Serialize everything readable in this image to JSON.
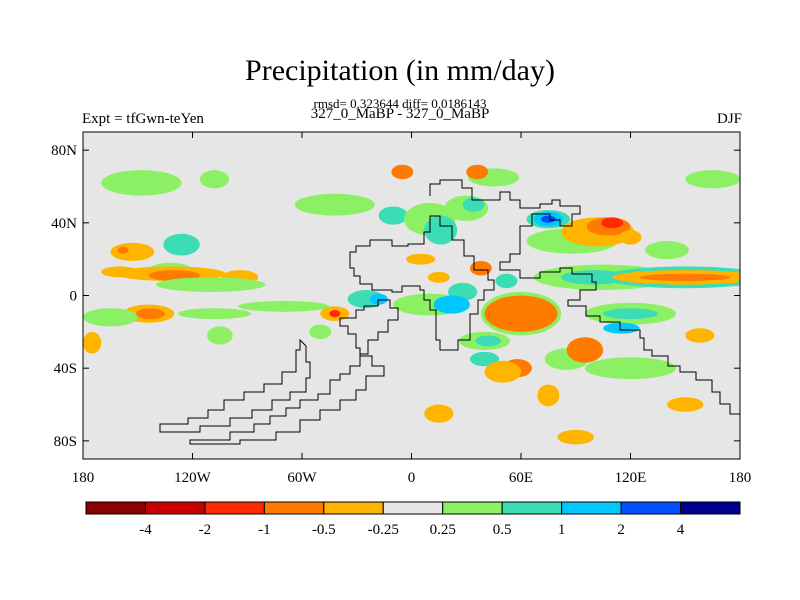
{
  "chart_data": {
    "type": "heatmap",
    "title": "Precipitation (in mm/day)",
    "stats_text": "rmsd= 0.323644 diff= 0.0186143",
    "case_text": "327_0_MaBP - 327_0_MaBP",
    "left_text": "Expt = tfGwn-teYen",
    "right_text": "DJF",
    "lon_range": [
      -180,
      180
    ],
    "lat_range": [
      -90,
      90
    ],
    "x_ticks": [
      {
        "value": -180,
        "label": "180"
      },
      {
        "value": -120,
        "label": "120W"
      },
      {
        "value": -60,
        "label": "60W"
      },
      {
        "value": 0,
        "label": "0"
      },
      {
        "value": 60,
        "label": "60E"
      },
      {
        "value": 120,
        "label": "120E"
      },
      {
        "value": 180,
        "label": "180"
      }
    ],
    "y_ticks": [
      {
        "value": 80,
        "label": "80N"
      },
      {
        "value": 40,
        "label": "40N"
      },
      {
        "value": 0,
        "label": "0"
      },
      {
        "value": -40,
        "label": "40S"
      },
      {
        "value": -80,
        "label": "80S"
      }
    ],
    "colorbar": {
      "colors": [
        "#8b0000",
        "#c80000",
        "#ff2a00",
        "#ff7b00",
        "#ffb400",
        "#e6e6e6",
        "#8cf064",
        "#3cdcb4",
        "#00c8ff",
        "#0050ff",
        "#00008c"
      ],
      "labels": [
        "-4",
        "-2",
        "-1",
        "-0.5",
        "-0.25",
        "0.25",
        "0.5",
        "1",
        "2",
        "4"
      ]
    },
    "background_color": "#e6e6e6",
    "anomalies": [
      {
        "lon": -153,
        "lat": 24,
        "rlon": 12,
        "rlat": 5,
        "level": 4
      },
      {
        "lon": -126,
        "lat": 28,
        "rlon": 10,
        "rlat": 6,
        "level": 7
      },
      {
        "lon": -132,
        "lat": 14,
        "rlon": 12,
        "rlat": 4,
        "level": 6
      },
      {
        "lon": -132,
        "lat": 12,
        "rlon": 30,
        "rlat": 4,
        "level": 4
      },
      {
        "lon": -130,
        "lat": 11,
        "rlon": 14,
        "rlat": 3,
        "level": 3
      },
      {
        "lon": -160,
        "lat": 13,
        "rlon": 10,
        "rlat": 3,
        "level": 4
      },
      {
        "lon": -148,
        "lat": 62,
        "rlon": 22,
        "rlat": 7,
        "level": 6
      },
      {
        "lon": -108,
        "lat": 64,
        "rlon": 8,
        "rlat": 5,
        "level": 6
      },
      {
        "lon": -94,
        "lat": 10,
        "rlon": 10,
        "rlat": 4,
        "level": 4
      },
      {
        "lon": -110,
        "lat": 6,
        "rlon": 30,
        "rlat": 4,
        "level": 6
      },
      {
        "lon": -175,
        "lat": -26,
        "rlon": 5,
        "rlat": 6,
        "level": 4
      },
      {
        "lon": -144,
        "lat": -10,
        "rlon": 14,
        "rlat": 5,
        "level": 4
      },
      {
        "lon": -143,
        "lat": -10,
        "rlon": 8,
        "rlat": 3,
        "level": 3
      },
      {
        "lon": -165,
        "lat": -12,
        "rlon": 15,
        "rlat": 5,
        "level": 6
      },
      {
        "lon": -108,
        "lat": -10,
        "rlon": 20,
        "rlat": 3,
        "level": 6
      },
      {
        "lon": -70,
        "lat": -6,
        "rlon": 25,
        "rlat": 3,
        "level": 6
      },
      {
        "lon": -42,
        "lat": -10,
        "rlon": 8,
        "rlat": 4,
        "level": 4
      },
      {
        "lon": -42,
        "lat": -10,
        "rlon": 3,
        "rlat": 2,
        "level": 2
      },
      {
        "lon": -105,
        "lat": -22,
        "rlon": 7,
        "rlat": 5,
        "level": 6
      },
      {
        "lon": -42,
        "lat": 50,
        "rlon": 22,
        "rlat": 6,
        "level": 6
      },
      {
        "lon": -10,
        "lat": 44,
        "rlon": 8,
        "rlat": 5,
        "level": 7
      },
      {
        "lon": -5,
        "lat": 68,
        "rlon": 6,
        "rlat": 4,
        "level": 3
      },
      {
        "lon": 10,
        "lat": 42,
        "rlon": 14,
        "rlat": 9,
        "level": 6
      },
      {
        "lon": 16,
        "lat": 36,
        "rlon": 9,
        "rlat": 8,
        "level": 7
      },
      {
        "lon": 30,
        "lat": 48,
        "rlon": 12,
        "rlat": 7,
        "level": 6
      },
      {
        "lon": 34,
        "lat": 50,
        "rlon": 6,
        "rlat": 4,
        "level": 7
      },
      {
        "lon": 45,
        "lat": 65,
        "rlon": 14,
        "rlat": 5,
        "level": 6
      },
      {
        "lon": 36,
        "lat": 68,
        "rlon": 6,
        "rlat": 4,
        "level": 3
      },
      {
        "lon": 5,
        "lat": 20,
        "rlon": 8,
        "rlat": 3,
        "level": 4
      },
      {
        "lon": 15,
        "lat": 10,
        "rlon": 6,
        "rlat": 3,
        "level": 4
      },
      {
        "lon": 10,
        "lat": -5,
        "rlon": 20,
        "rlat": 6,
        "level": 6
      },
      {
        "lon": -25,
        "lat": -2,
        "rlon": 10,
        "rlat": 5,
        "level": 7
      },
      {
        "lon": -18,
        "lat": -2,
        "rlon": 5,
        "rlat": 3,
        "level": 8
      },
      {
        "lon": 28,
        "lat": 2,
        "rlon": 8,
        "rlat": 5,
        "level": 7
      },
      {
        "lon": -50,
        "lat": -20,
        "rlon": 6,
        "rlat": 4,
        "level": 6
      },
      {
        "lon": 38,
        "lat": 15,
        "rlon": 6,
        "rlat": 4,
        "level": 3
      },
      {
        "lon": 52,
        "lat": 8,
        "rlon": 6,
        "rlat": 4,
        "level": 7
      },
      {
        "lon": 60,
        "lat": -10,
        "rlon": 22,
        "rlat": 12,
        "level": 6
      },
      {
        "lon": 60,
        "lat": -10,
        "rlon": 20,
        "rlat": 10,
        "level": 3
      },
      {
        "lon": 40,
        "lat": -25,
        "rlon": 14,
        "rlat": 5,
        "level": 6
      },
      {
        "lon": 42,
        "lat": -25,
        "rlon": 7,
        "rlat": 3,
        "level": 7
      },
      {
        "lon": 40,
        "lat": -35,
        "rlon": 8,
        "rlat": 4,
        "level": 7
      },
      {
        "lon": 58,
        "lat": -40,
        "rlon": 8,
        "rlat": 5,
        "level": 3
      },
      {
        "lon": 50,
        "lat": -42,
        "rlon": 10,
        "rlat": 6,
        "level": 4
      },
      {
        "lon": 85,
        "lat": -35,
        "rlon": 12,
        "rlat": 6,
        "level": 6
      },
      {
        "lon": 75,
        "lat": -55,
        "rlon": 6,
        "rlat": 6,
        "level": 4
      },
      {
        "lon": 15,
        "lat": -65,
        "rlon": 8,
        "rlat": 5,
        "level": 4
      },
      {
        "lon": 95,
        "lat": -30,
        "rlon": 10,
        "rlat": 7,
        "level": 3
      },
      {
        "lon": 120,
        "lat": -40,
        "rlon": 25,
        "rlat": 6,
        "level": 6
      },
      {
        "lon": 150,
        "lat": -60,
        "rlon": 10,
        "rlat": 4,
        "level": 4
      },
      {
        "lon": 90,
        "lat": -78,
        "rlon": 10,
        "rlat": 4,
        "level": 4
      },
      {
        "lon": 88,
        "lat": 30,
        "rlon": 25,
        "rlat": 7,
        "level": 6
      },
      {
        "lon": 102,
        "lat": 35,
        "rlon": 20,
        "rlat": 8,
        "level": 4
      },
      {
        "lon": 108,
        "lat": 38,
        "rlon": 12,
        "rlat": 5,
        "level": 3
      },
      {
        "lon": 110,
        "lat": 40,
        "rlon": 6,
        "rlat": 3,
        "level": 2
      },
      {
        "lon": 120,
        "lat": 32,
        "rlon": 6,
        "rlat": 4,
        "level": 4
      },
      {
        "lon": 75,
        "lat": 42,
        "rlon": 12,
        "rlat": 5,
        "level": 7
      },
      {
        "lon": 75,
        "lat": 42,
        "rlon": 8,
        "rlat": 4,
        "level": 8
      },
      {
        "lon": 75,
        "lat": 42,
        "rlon": 4,
        "rlat": 2,
        "level": 9
      },
      {
        "lon": 105,
        "lat": 10,
        "rlon": 38,
        "rlat": 7,
        "level": 6
      },
      {
        "lon": 100,
        "lat": 10,
        "rlon": 18,
        "rlat": 4,
        "level": 7
      },
      {
        "lon": 150,
        "lat": 10,
        "rlon": 45,
        "rlat": 6,
        "level": 7
      },
      {
        "lon": 150,
        "lat": 10,
        "rlon": 40,
        "rlat": 4,
        "level": 4
      },
      {
        "lon": 150,
        "lat": 10,
        "rlon": 25,
        "rlat": 2,
        "level": 3
      },
      {
        "lon": 140,
        "lat": 25,
        "rlon": 12,
        "rlat": 5,
        "level": 6
      },
      {
        "lon": 120,
        "lat": -10,
        "rlon": 25,
        "rlat": 6,
        "level": 6
      },
      {
        "lon": 120,
        "lat": -10,
        "rlon": 15,
        "rlat": 3,
        "level": 7
      },
      {
        "lon": 115,
        "lat": -18,
        "rlon": 10,
        "rlat": 3,
        "level": 8
      },
      {
        "lon": 165,
        "lat": 64,
        "rlon": 15,
        "rlat": 5,
        "level": 6
      },
      {
        "lon": 158,
        "lat": -22,
        "rlon": 8,
        "rlat": 4,
        "level": 4
      },
      {
        "lon": 22,
        "lat": -5,
        "rlon": 10,
        "rlat": 5,
        "level": 8
      },
      {
        "lon": -158,
        "lat": 25,
        "rlon": 3,
        "rlat": 2,
        "level": 3
      }
    ]
  }
}
